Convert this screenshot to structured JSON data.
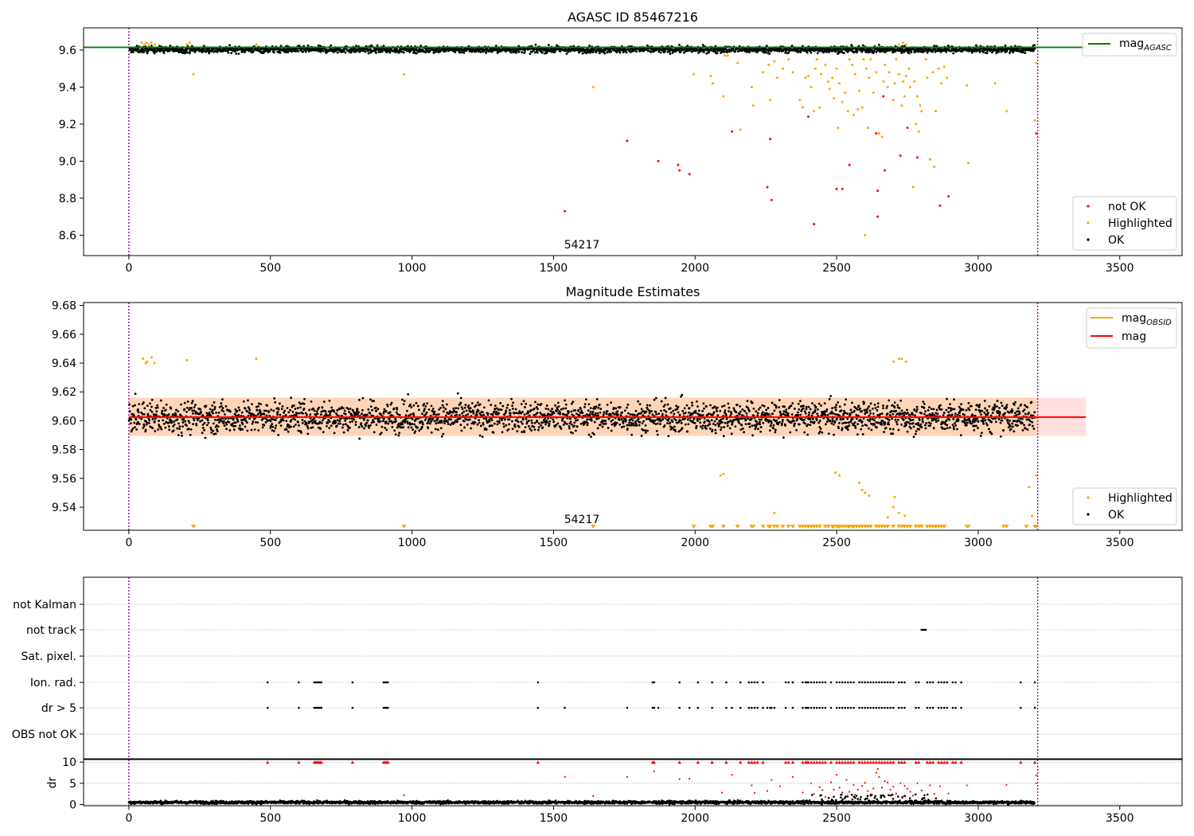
{
  "figure": {
    "x_ticks": [
      0,
      500,
      1000,
      1500,
      2000,
      2500,
      3000,
      3500
    ],
    "x_range": [
      -160,
      3720
    ],
    "obsid_span": [
      0,
      3210
    ],
    "obsid_label": "54217",
    "obsid_label_x": 1600
  },
  "chart_data": [
    {
      "type": "scatter",
      "title": "AGASC ID 85467216",
      "ylim": [
        8.49,
        9.72
      ],
      "y_ticks": [
        8.6,
        8.8,
        9.0,
        9.2,
        9.4,
        9.6
      ],
      "mag_agasc": 9.615,
      "legend_line": {
        "label": "mag",
        "sub": "AGASC",
        "color": "#008000"
      },
      "legend_points": [
        {
          "label": "not OK",
          "color": "#ff0000"
        },
        {
          "label": "Highlighted",
          "color": "#ffa500"
        },
        {
          "label": "OK",
          "color": "#000000"
        }
      ],
      "ok_band": {
        "x": [
          0,
          3200
        ],
        "y_center": 9.603,
        "spread": 0.018
      },
      "highlighted": [
        [
          45,
          9.64
        ],
        [
          55,
          9.63
        ],
        [
          62,
          9.64
        ],
        [
          70,
          9.63
        ],
        [
          80,
          9.64
        ],
        [
          92,
          9.63
        ],
        [
          205,
          9.63
        ],
        [
          215,
          9.64
        ],
        [
          228,
          9.47
        ],
        [
          450,
          9.63
        ],
        [
          972,
          9.47
        ],
        [
          1640,
          9.4
        ],
        [
          1995,
          9.47
        ],
        [
          2055,
          9.46
        ],
        [
          2062,
          9.42
        ],
        [
          2100,
          9.35
        ],
        [
          2105,
          9.57
        ],
        [
          2115,
          9.57
        ],
        [
          2150,
          9.53
        ],
        [
          2160,
          9.17
        ],
        [
          2200,
          9.4
        ],
        [
          2205,
          9.3
        ],
        [
          2240,
          9.48
        ],
        [
          2260,
          9.52
        ],
        [
          2265,
          9.33
        ],
        [
          2280,
          9.54
        ],
        [
          2290,
          9.45
        ],
        [
          2310,
          9.5
        ],
        [
          2330,
          9.55
        ],
        [
          2345,
          9.48
        ],
        [
          2370,
          9.33
        ],
        [
          2380,
          9.29
        ],
        [
          2390,
          9.45
        ],
        [
          2400,
          9.46
        ],
        [
          2410,
          9.4
        ],
        [
          2420,
          9.27
        ],
        [
          2425,
          9.5
        ],
        [
          2430,
          9.55
        ],
        [
          2440,
          9.29
        ],
        [
          2445,
          9.47
        ],
        [
          2460,
          9.52
        ],
        [
          2470,
          9.43
        ],
        [
          2475,
          9.39
        ],
        [
          2485,
          9.45
        ],
        [
          2490,
          9.34
        ],
        [
          2500,
          9.5
        ],
        [
          2505,
          9.18
        ],
        [
          2510,
          9.42
        ],
        [
          2520,
          9.32
        ],
        [
          2530,
          9.37
        ],
        [
          2540,
          9.27
        ],
        [
          2545,
          9.55
        ],
        [
          2555,
          9.52
        ],
        [
          2560,
          9.25
        ],
        [
          2565,
          9.47
        ],
        [
          2575,
          9.28
        ],
        [
          2580,
          9.38
        ],
        [
          2590,
          9.29
        ],
        [
          2595,
          9.55
        ],
        [
          2600,
          8.6
        ],
        [
          2605,
          9.5
        ],
        [
          2610,
          9.18
        ],
        [
          2615,
          9.45
        ],
        [
          2620,
          9.55
        ],
        [
          2630,
          9.37
        ],
        [
          2640,
          9.48
        ],
        [
          2650,
          9.15
        ],
        [
          2660,
          9.13
        ],
        [
          2665,
          9.43
        ],
        [
          2670,
          9.52
        ],
        [
          2680,
          9.4
        ],
        [
          2685,
          9.48
        ],
        [
          2700,
          9.33
        ],
        [
          2705,
          9.42
        ],
        [
          2710,
          9.55
        ],
        [
          2720,
          9.47
        ],
        [
          2730,
          9.3
        ],
        [
          2735,
          9.43
        ],
        [
          2740,
          9.35
        ],
        [
          2745,
          9.46
        ],
        [
          2755,
          9.5
        ],
        [
          2760,
          9.4
        ],
        [
          2770,
          8.86
        ],
        [
          2775,
          9.43
        ],
        [
          2780,
          9.2
        ],
        [
          2785,
          9.35
        ],
        [
          2790,
          9.16
        ],
        [
          2795,
          9.3
        ],
        [
          2800,
          9.27
        ],
        [
          2815,
          9.55
        ],
        [
          2820,
          9.45
        ],
        [
          2830,
          9.01
        ],
        [
          2840,
          9.48
        ],
        [
          2845,
          8.97
        ],
        [
          2850,
          9.27
        ],
        [
          2860,
          9.5
        ],
        [
          2870,
          9.42
        ],
        [
          2880,
          9.51
        ],
        [
          2890,
          9.45
        ],
        [
          2965,
          8.99
        ],
        [
          2960,
          9.41
        ],
        [
          3060,
          9.42
        ],
        [
          3100,
          9.27
        ],
        [
          3200,
          9.22
        ],
        [
          3205,
          9.53
        ],
        [
          2720,
          9.63
        ],
        [
          2735,
          9.64
        ],
        [
          2745,
          9.63
        ]
      ],
      "not_ok": [
        [
          1540,
          8.73
        ],
        [
          1760,
          9.11
        ],
        [
          1870,
          9.0
        ],
        [
          1940,
          8.98
        ],
        [
          1945,
          8.95
        ],
        [
          1980,
          8.93
        ],
        [
          2130,
          9.16
        ],
        [
          2255,
          8.86
        ],
        [
          2265,
          9.12
        ],
        [
          2270,
          8.79
        ],
        [
          2400,
          9.24
        ],
        [
          2420,
          8.66
        ],
        [
          2500,
          8.85
        ],
        [
          2520,
          8.85
        ],
        [
          2545,
          8.98
        ],
        [
          2640,
          9.15
        ],
        [
          2645,
          8.84
        ],
        [
          2645,
          8.7
        ],
        [
          2665,
          9.35
        ],
        [
          2670,
          8.95
        ],
        [
          2725,
          9.03
        ],
        [
          2750,
          9.18
        ],
        [
          2785,
          9.02
        ],
        [
          2865,
          8.76
        ],
        [
          2895,
          8.81
        ],
        [
          3205,
          9.15
        ]
      ]
    },
    {
      "type": "scatter",
      "title": "Magnitude Estimates",
      "ylim": [
        9.524,
        9.682
      ],
      "y_ticks": [
        9.54,
        9.56,
        9.58,
        9.6,
        9.62,
        9.64,
        9.66,
        9.68
      ],
      "mag": 9.6025,
      "mag_obsid": 9.6025,
      "band": [
        9.5895,
        9.616
      ],
      "legend_lines": [
        {
          "label": "mag",
          "sub": "OBSID",
          "color": "#ffa500"
        },
        {
          "label": "mag",
          "sub": "",
          "color": "#ff0000"
        }
      ],
      "legend_points": [
        {
          "label": "Highlighted",
          "color": "#ffa500"
        },
        {
          "label": "OK",
          "color": "#000000"
        }
      ],
      "ok_band": {
        "x": [
          0,
          3200
        ],
        "y_center": 9.6025,
        "spread": 0.011
      },
      "highlighted": [
        [
          50,
          9.643
        ],
        [
          60,
          9.64
        ],
        [
          65,
          9.641
        ],
        [
          80,
          9.644
        ],
        [
          90,
          9.64
        ],
        [
          205,
          9.642
        ],
        [
          450,
          9.643
        ],
        [
          2090,
          9.562
        ],
        [
          2100,
          9.563
        ],
        [
          2495,
          9.564
        ],
        [
          2510,
          9.562
        ],
        [
          2580,
          9.557
        ],
        [
          2590,
          9.552
        ],
        [
          2600,
          9.55
        ],
        [
          2615,
          9.548
        ],
        [
          2680,
          9.533
        ],
        [
          2700,
          9.54
        ],
        [
          2705,
          9.547
        ],
        [
          2720,
          9.536
        ],
        [
          2740,
          9.534
        ],
        [
          2720,
          9.643
        ],
        [
          2700,
          9.641
        ],
        [
          2730,
          9.643
        ],
        [
          2745,
          9.641
        ],
        [
          3180,
          9.554
        ],
        [
          3190,
          9.534
        ],
        [
          2280,
          9.536
        ],
        [
          3205,
          9.562
        ]
      ],
      "below_limit_x": [
        228,
        972,
        1640,
        1995,
        2055,
        2062,
        2100,
        2150,
        2200,
        2205,
        2240,
        2260,
        2265,
        2280,
        2290,
        2310,
        2330,
        2345,
        2370,
        2380,
        2390,
        2400,
        2410,
        2420,
        2430,
        2440,
        2460,
        2470,
        2485,
        2490,
        2500,
        2505,
        2510,
        2520,
        2530,
        2540,
        2545,
        2555,
        2560,
        2570,
        2580,
        2590,
        2600,
        2610,
        2620,
        2640,
        2650,
        2660,
        2670,
        2680,
        2700,
        2720,
        2730,
        2740,
        2750,
        2760,
        2780,
        2790,
        2800,
        2820,
        2830,
        2840,
        2850,
        2860,
        2870,
        2880,
        2960,
        2965,
        3090,
        3100,
        3170,
        3200,
        3205
      ]
    },
    {
      "type": "scatter",
      "categories": [
        "not Kalman",
        "not track",
        "Sat. pixel.",
        "Ion. rad.",
        "dr > 5",
        "OBS not OK"
      ],
      "flags": {
        "not track": [
          2800,
          2805,
          2810,
          2815
        ],
        "Ion. rad.": [
          490,
          600,
          655,
          660,
          665,
          670,
          675,
          680,
          790,
          900,
          905,
          910,
          915,
          1445,
          1850,
          1855,
          1945,
          2010,
          2060,
          2110,
          2160,
          2190,
          2200,
          2210,
          2220,
          2240,
          2320,
          2330,
          2345,
          2380,
          2390,
          2395,
          2400,
          2410,
          2420,
          2430,
          2440,
          2450,
          2460,
          2480,
          2500,
          2510,
          2520,
          2530,
          2540,
          2550,
          2560,
          2580,
          2590,
          2600,
          2610,
          2620,
          2630,
          2640,
          2650,
          2660,
          2670,
          2680,
          2690,
          2700,
          2720,
          2730,
          2740,
          2780,
          2790,
          2820,
          2830,
          2840,
          2860,
          2870,
          2880,
          2890,
          2910,
          2920,
          2940,
          3150,
          3200
        ],
        "dr > 5": [
          490,
          600,
          655,
          660,
          665,
          670,
          675,
          680,
          790,
          900,
          905,
          910,
          915,
          1445,
          1540,
          1760,
          1850,
          1855,
          1870,
          1945,
          1980,
          2010,
          2060,
          2110,
          2130,
          2160,
          2190,
          2200,
          2210,
          2220,
          2240,
          2255,
          2265,
          2270,
          2280,
          2320,
          2345,
          2380,
          2390,
          2395,
          2400,
          2410,
          2420,
          2430,
          2440,
          2450,
          2460,
          2480,
          2500,
          2510,
          2520,
          2530,
          2540,
          2550,
          2560,
          2580,
          2590,
          2600,
          2610,
          2620,
          2630,
          2640,
          2650,
          2660,
          2670,
          2680,
          2690,
          2700,
          2720,
          2730,
          2740,
          2780,
          2790,
          2820,
          2830,
          2840,
          2860,
          2870,
          2880,
          2890,
          2910,
          2920,
          2940,
          3150,
          3200
        ]
      }
    },
    {
      "type": "scatter",
      "ylabel": "dr",
      "ylim": [
        -0.3,
        10.6
      ],
      "y_ticks": [
        0,
        5,
        10
      ],
      "ok_band": {
        "x": [
          0,
          3200
        ],
        "y_center": 0.5,
        "spread": 0.35
      },
      "capped_x": [
        490,
        600,
        655,
        660,
        665,
        670,
        675,
        680,
        790,
        900,
        905,
        910,
        915,
        1445,
        1850,
        1855,
        1945,
        2010,
        2060,
        2110,
        2160,
        2190,
        2200,
        2210,
        2220,
        2240,
        2320,
        2330,
        2345,
        2380,
        2390,
        2395,
        2400,
        2410,
        2420,
        2430,
        2440,
        2450,
        2460,
        2480,
        2500,
        2510,
        2520,
        2530,
        2540,
        2550,
        2560,
        2580,
        2590,
        2600,
        2610,
        2620,
        2630,
        2640,
        2650,
        2660,
        2670,
        2680,
        2690,
        2700,
        2720,
        2730,
        2740,
        2780,
        2790,
        2820,
        2830,
        2840,
        2860,
        2870,
        2880,
        2890,
        2910,
        2920,
        2940,
        3150,
        3200
      ],
      "high_points": [
        [
          1540,
          6.5
        ],
        [
          1760,
          6.5
        ],
        [
          1855,
          7.8
        ],
        [
          1945,
          6.0
        ],
        [
          1980,
          6.1
        ],
        [
          2095,
          2.8
        ],
        [
          2130,
          7.0
        ],
        [
          2200,
          4.5
        ],
        [
          2210,
          2.7
        ],
        [
          2255,
          3.2
        ],
        [
          2270,
          5.8
        ],
        [
          2300,
          4.3
        ],
        [
          2345,
          6.5
        ],
        [
          2380,
          2.8
        ],
        [
          2410,
          5.0
        ],
        [
          2420,
          2.5
        ],
        [
          2440,
          4.1
        ],
        [
          2450,
          3.4
        ],
        [
          2460,
          1.8
        ],
        [
          2480,
          5.2
        ],
        [
          2490,
          3.5
        ],
        [
          2500,
          7.0
        ],
        [
          2510,
          4.0
        ],
        [
          2520,
          2.8
        ],
        [
          2535,
          5.8
        ],
        [
          2545,
          3.0
        ],
        [
          2560,
          4.6
        ],
        [
          2575,
          3.5
        ],
        [
          2590,
          4.4
        ],
        [
          2600,
          5.1
        ],
        [
          2610,
          3.2
        ],
        [
          2620,
          2.4
        ],
        [
          2630,
          3.8
        ],
        [
          2640,
          7.5
        ],
        [
          2645,
          8.4
        ],
        [
          2650,
          6.5
        ],
        [
          2660,
          4.0
        ],
        [
          2670,
          5.5
        ],
        [
          2680,
          5.2
        ],
        [
          2690,
          3.5
        ],
        [
          2700,
          4.2
        ],
        [
          2710,
          2.6
        ],
        [
          2725,
          5.0
        ],
        [
          2740,
          4.4
        ],
        [
          2750,
          3.7
        ],
        [
          2760,
          3.0
        ],
        [
          2785,
          5.0
        ],
        [
          2800,
          3.3
        ],
        [
          2830,
          4.5
        ],
        [
          2845,
          2.5
        ],
        [
          2865,
          4.3
        ],
        [
          2895,
          2.6
        ],
        [
          2960,
          4.5
        ],
        [
          3100,
          4.6
        ],
        [
          3205,
          6.9
        ],
        [
          3205,
          5.0
        ],
        [
          972,
          2.2
        ],
        [
          1640,
          2.0
        ],
        [
          2565,
          2.3
        ],
        [
          2735,
          1.9
        ],
        [
          2770,
          2.1
        ]
      ]
    }
  ]
}
